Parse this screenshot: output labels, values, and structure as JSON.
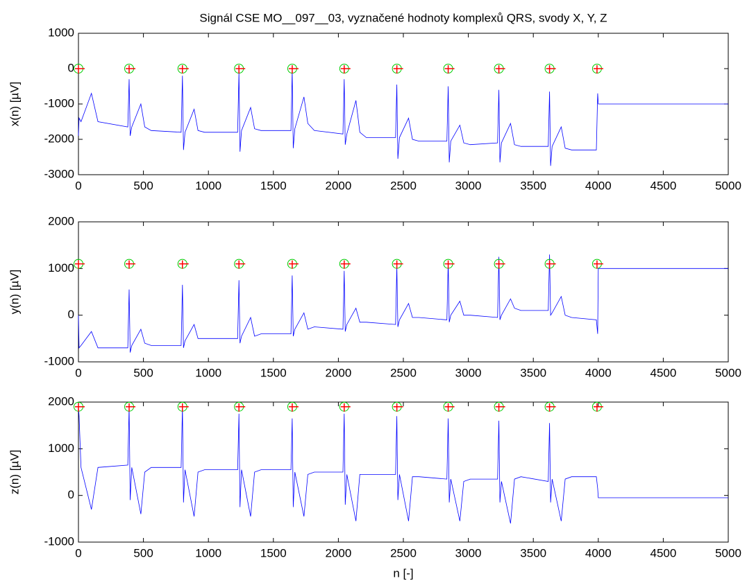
{
  "chart_data": [
    {
      "type": "line",
      "title": "Signál CSE MO__097__03, vyznačené hodnoty komplexů QRS, svody X, Y, Z",
      "ylabel": "x(n) [µV]",
      "xlim": [
        0,
        5000
      ],
      "xticks": [
        0,
        500,
        1000,
        1500,
        2000,
        2500,
        3000,
        3500,
        4000,
        4500,
        5000
      ],
      "ylim": [
        -3000,
        1000
      ],
      "yticks": [
        -3000,
        -2000,
        -1000,
        0,
        1000
      ],
      "x": [
        0,
        5,
        20,
        100,
        150,
        380,
        390,
        398,
        410,
        480,
        510,
        560,
        790,
        800,
        808,
        820,
        890,
        920,
        970,
        1225,
        1235,
        1243,
        1255,
        1325,
        1355,
        1405,
        1635,
        1645,
        1653,
        1665,
        1735,
        1765,
        1815,
        2035,
        2045,
        2053,
        2065,
        2135,
        2165,
        2215,
        2440,
        2450,
        2458,
        2470,
        2540,
        2570,
        2620,
        2835,
        2845,
        2853,
        2865,
        2935,
        2965,
        3015,
        3225,
        3235,
        3243,
        3255,
        3325,
        3355,
        3405,
        3615,
        3625,
        3633,
        3645,
        3715,
        3745,
        3795,
        3985,
        3995,
        4000,
        5000
      ],
      "series": [
        {
          "color": "#0000ff",
          "values": [
            -1900,
            -1400,
            -1500,
            -700,
            -1500,
            -1650,
            -300,
            -1900,
            -1650,
            -1000,
            -1650,
            -1750,
            -1800,
            -200,
            -2300,
            -1800,
            -1150,
            -1750,
            -1800,
            -1800,
            -100,
            -2350,
            -1750,
            -1100,
            -1700,
            -1750,
            -1750,
            -50,
            -2250,
            -1700,
            -800,
            -1550,
            -1750,
            -1850,
            -300,
            -2150,
            -1850,
            -900,
            -1800,
            -1950,
            -1950,
            -450,
            -2550,
            -1950,
            -1400,
            -2000,
            -2050,
            -2050,
            -500,
            -2650,
            -2050,
            -1600,
            -2100,
            -2150,
            -2100,
            -600,
            -2650,
            -2100,
            -1550,
            -2150,
            -2200,
            -2200,
            -650,
            -2750,
            -2200,
            -1650,
            -2250,
            -2300,
            -2300,
            -700,
            -1000,
            -1000
          ]
        }
      ],
      "markers": {
        "x": [
          0,
          390,
          800,
          1235,
          1645,
          2045,
          2450,
          2845,
          3235,
          3625,
          3990
        ],
        "values": [
          0,
          0,
          0,
          0,
          0,
          0,
          0,
          0,
          0,
          0,
          0
        ],
        "color": "#00cc00",
        "accent": "#ff0000"
      }
    },
    {
      "type": "line",
      "ylabel": "y(n) [µV]",
      "xlim": [
        0,
        5000
      ],
      "xticks": [
        0,
        500,
        1000,
        1500,
        2000,
        2500,
        3000,
        3500,
        4000,
        4500,
        5000
      ],
      "ylim": [
        -1000,
        2000
      ],
      "yticks": [
        -1000,
        0,
        1000,
        2000
      ],
      "x": [
        0,
        5,
        20,
        100,
        150,
        380,
        390,
        398,
        410,
        480,
        510,
        560,
        790,
        800,
        808,
        820,
        890,
        920,
        970,
        1225,
        1235,
        1243,
        1255,
        1325,
        1355,
        1405,
        1635,
        1645,
        1653,
        1665,
        1735,
        1765,
        1815,
        2035,
        2045,
        2053,
        2065,
        2135,
        2165,
        2215,
        2440,
        2450,
        2458,
        2470,
        2540,
        2570,
        2620,
        2835,
        2845,
        2853,
        2865,
        2935,
        2965,
        3015,
        3225,
        3235,
        3243,
        3255,
        3325,
        3355,
        3405,
        3615,
        3625,
        3633,
        3645,
        3715,
        3745,
        3795,
        3985,
        3995,
        4000,
        5000
      ],
      "series": [
        {
          "color": "#0000ff",
          "values": [
            0,
            -700,
            -650,
            -350,
            -700,
            -700,
            550,
            -800,
            -650,
            -300,
            -600,
            -650,
            -650,
            650,
            -700,
            -550,
            -200,
            -500,
            -500,
            -500,
            750,
            -600,
            -450,
            -50,
            -450,
            -400,
            -400,
            850,
            -450,
            -300,
            50,
            -300,
            -250,
            -300,
            950,
            -350,
            -200,
            150,
            -150,
            -150,
            -200,
            1050,
            -250,
            -100,
            250,
            -50,
            -50,
            -100,
            1150,
            -150,
            0,
            300,
            0,
            0,
            -50,
            1250,
            -100,
            0,
            350,
            150,
            100,
            100,
            1300,
            0,
            50,
            400,
            0,
            -50,
            -100,
            -400,
            1000,
            1000
          ]
        }
      ],
      "markers": {
        "x": [
          0,
          390,
          800,
          1235,
          1645,
          2045,
          2450,
          2845,
          3235,
          3625,
          3990
        ],
        "values": [
          1100,
          1100,
          1100,
          1100,
          1100,
          1100,
          1100,
          1100,
          1100,
          1100,
          1100
        ],
        "color": "#00cc00",
        "accent": "#ff0000"
      }
    },
    {
      "type": "line",
      "ylabel": "z(n) [µV]",
      "xlabel": "n [-]",
      "xlim": [
        0,
        5000
      ],
      "xticks": [
        0,
        500,
        1000,
        1500,
        2000,
        2500,
        3000,
        3500,
        4000,
        4500,
        5000
      ],
      "ylim": [
        -1000,
        2000
      ],
      "yticks": [
        -1000,
        0,
        1000,
        2000
      ],
      "x": [
        0,
        5,
        20,
        100,
        150,
        380,
        390,
        398,
        410,
        480,
        510,
        560,
        790,
        800,
        808,
        820,
        890,
        920,
        970,
        1225,
        1235,
        1243,
        1255,
        1325,
        1355,
        1405,
        1635,
        1645,
        1653,
        1665,
        1735,
        1765,
        1815,
        2035,
        2045,
        2053,
        2065,
        2135,
        2165,
        2215,
        2440,
        2450,
        2458,
        2470,
        2540,
        2570,
        2620,
        2835,
        2845,
        2853,
        2865,
        2935,
        2965,
        3015,
        3225,
        3235,
        3243,
        3255,
        3325,
        3355,
        3405,
        3615,
        3625,
        3633,
        3645,
        3715,
        3745,
        3795,
        3985,
        3995,
        4000,
        5000
      ],
      "series": [
        {
          "color": "#0000ff",
          "values": [
            1900,
            1700,
            600,
            -300,
            600,
            650,
            1900,
            -100,
            600,
            -400,
            500,
            600,
            600,
            1900,
            -150,
            550,
            -450,
            500,
            550,
            550,
            1750,
            -250,
            550,
            -450,
            500,
            550,
            550,
            1650,
            -250,
            500,
            -450,
            450,
            500,
            500,
            1750,
            -200,
            450,
            -550,
            450,
            450,
            450,
            1700,
            -100,
            450,
            -550,
            400,
            400,
            350,
            1650,
            -150,
            350,
            -550,
            300,
            350,
            350,
            1600,
            -150,
            300,
            -600,
            350,
            400,
            300,
            1550,
            -150,
            350,
            -550,
            350,
            400,
            400,
            150,
            -50,
            -50
          ]
        }
      ],
      "markers": {
        "x": [
          0,
          390,
          800,
          1235,
          1645,
          2045,
          2450,
          2845,
          3235,
          3625,
          3990
        ],
        "values": [
          1900,
          1900,
          1900,
          1900,
          1900,
          1900,
          1900,
          1900,
          1900,
          1900,
          1900
        ],
        "color": "#00cc00",
        "accent": "#ff0000"
      }
    }
  ]
}
